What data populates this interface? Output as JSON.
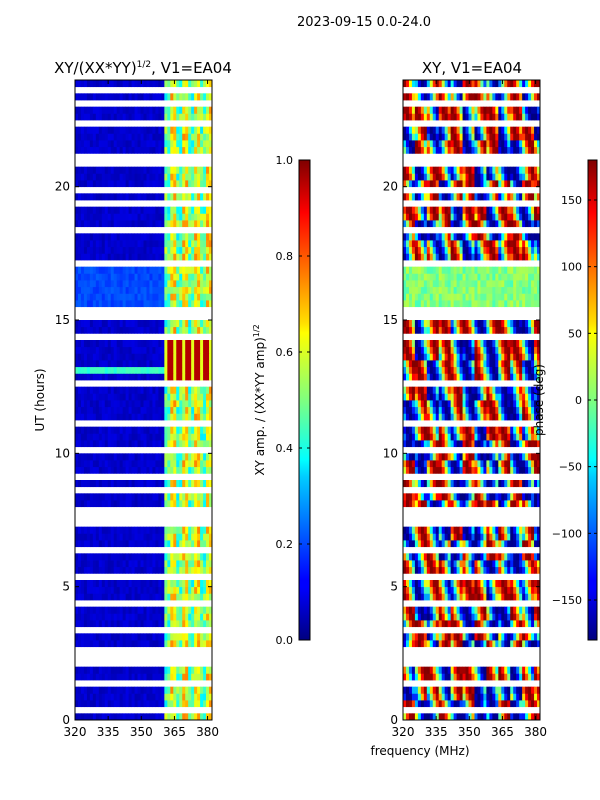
{
  "figure": {
    "suptitle": "2023-09-15 0.0-24.0",
    "shared_xlabel": "frequency (MHz)"
  },
  "chart_data": [
    {
      "type": "heatmap",
      "title": "XY/(XX*YY)",
      "title_sup": "1/2",
      "title_suffix": ", V1=EA04",
      "xlabel": "",
      "ylabel": "UT (hours)",
      "xlim": [
        320,
        382
      ],
      "ylim": [
        0,
        24
      ],
      "xticks": [
        320,
        335,
        350,
        365,
        380
      ],
      "yticks": [
        0,
        5,
        10,
        15,
        20
      ],
      "colormap": "jet",
      "colorbar": {
        "label": "XY amp. / (XX*YY amp)",
        "label_sup": "1/2",
        "range": [
          0.0,
          1.0
        ],
        "ticks": [
          "0.0",
          "0.2",
          "0.4",
          "0.6",
          "0.8",
          "1.0"
        ]
      },
      "flagged_band_mhz": [
        320,
        360
      ],
      "typical_value_flagged_band": 0.05,
      "typical_value_clean_band": 0.35,
      "enhanced_interval_hours": [
        12.4,
        14.2
      ],
      "enhanced_value": 0.95,
      "flagged_time_gaps_hours": [
        0.4,
        1.3,
        2.1,
        2.4,
        2.6,
        3.4,
        4.3,
        5.3,
        6.3,
        7.4,
        7.6,
        7.8,
        8.6,
        9.2,
        10.2,
        11.2,
        12.0,
        12.6,
        14.3,
        15.1,
        15.4,
        17.0,
        17.2,
        18.4,
        19.0,
        19.4,
        19.8,
        20.8,
        21.2,
        22.3,
        23.1,
        23.6
      ]
    },
    {
      "type": "heatmap",
      "title": "XY, V1=EA04",
      "xlabel": "frequency (MHz)",
      "ylabel": "",
      "xlim": [
        320,
        382
      ],
      "ylim": [
        0,
        24
      ],
      "xticks": [
        320,
        335,
        350,
        365,
        380
      ],
      "yticks": [
        0,
        5,
        10,
        15,
        20
      ],
      "colormap": "jet",
      "colorbar": {
        "label": "phase (deg)",
        "range": [
          -180,
          180
        ],
        "ticks": [
          "−150",
          "−100",
          "−50",
          "0",
          "50",
          "100",
          "150"
        ]
      },
      "smooth_interval_hours": [
        15.5,
        17.0
      ],
      "smooth_value_deg": 0,
      "flagged_time_gaps_hours": [
        0.4,
        1.3,
        2.1,
        2.4,
        2.6,
        3.4,
        4.3,
        5.3,
        6.3,
        7.4,
        7.6,
        7.8,
        8.6,
        9.2,
        10.2,
        11.2,
        12.0,
        12.6,
        14.3,
        15.1,
        15.4,
        17.0,
        17.2,
        18.4,
        19.0,
        19.4,
        19.8,
        20.8,
        21.2,
        22.3,
        23.1,
        23.6
      ]
    }
  ]
}
